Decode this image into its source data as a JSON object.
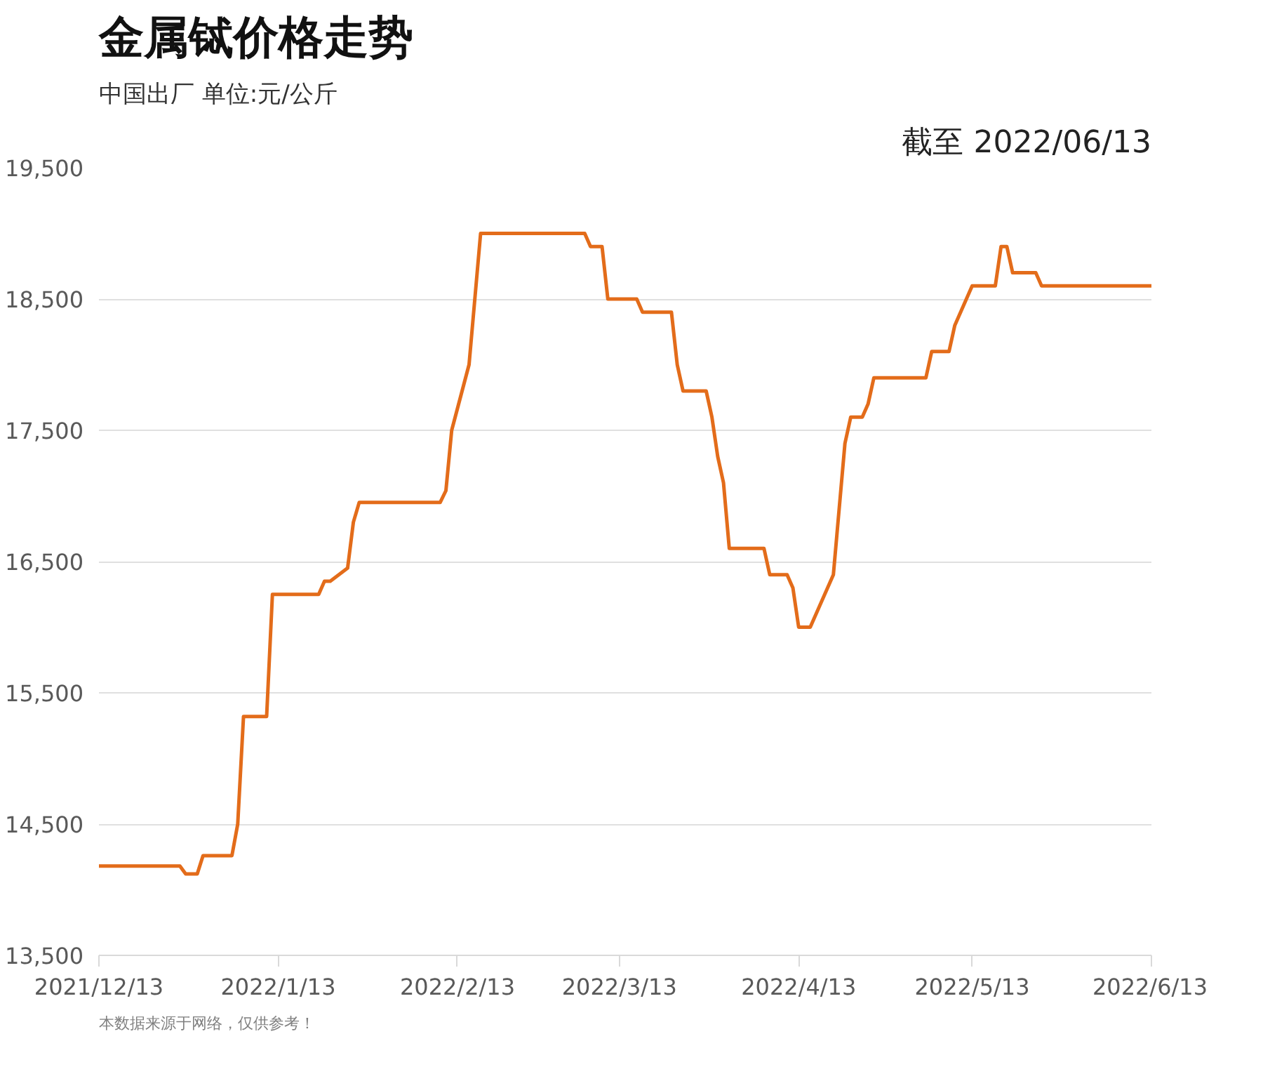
{
  "chart_data": {
    "type": "line",
    "title": "金属铽价格走势",
    "subtitle": "中国出厂  单位:元/公斤",
    "annotations": [
      "截至 2022/06/13",
      "本数据来源于网络，仅供参考！"
    ],
    "x": [
      "2021-12-13",
      "2021-12-27",
      "2021-12-28",
      "2021-12-30",
      "2021-12-31",
      "2022-01-05",
      "2022-01-06",
      "2022-01-07",
      "2022-01-11",
      "2022-01-12",
      "2022-01-20",
      "2022-01-21",
      "2022-01-22",
      "2022-01-25",
      "2022-01-26",
      "2022-01-27",
      "2022-02-10",
      "2022-02-11",
      "2022-02-12",
      "2022-02-15",
      "2022-02-17",
      "2022-03-07",
      "2022-03-08",
      "2022-03-10",
      "2022-03-11",
      "2022-03-16",
      "2022-03-17",
      "2022-03-22",
      "2022-03-23",
      "2022-03-24",
      "2022-03-28",
      "2022-03-29",
      "2022-03-30",
      "2022-03-31",
      "2022-04-01",
      "2022-04-07",
      "2022-04-08",
      "2022-04-11",
      "2022-04-12",
      "2022-04-13",
      "2022-04-15",
      "2022-04-19",
      "2022-04-21",
      "2022-04-22",
      "2022-04-24",
      "2022-04-25",
      "2022-04-26",
      "2022-05-05",
      "2022-05-06",
      "2022-05-09",
      "2022-05-10",
      "2022-05-13",
      "2022-05-17",
      "2022-05-18",
      "2022-05-19",
      "2022-05-20",
      "2022-05-24",
      "2022-05-25",
      "2022-06-13"
    ],
    "series": [
      {
        "color": "#e36c1a",
        "values": [
          14180,
          14180,
          14120,
          14120,
          14260,
          14260,
          14500,
          15320,
          15320,
          16250,
          16250,
          16350,
          16350,
          16450,
          16800,
          16950,
          16950,
          17040,
          17500,
          18000,
          19000,
          19000,
          18900,
          18900,
          18500,
          18500,
          18400,
          18400,
          18000,
          17800,
          17800,
          17600,
          17300,
          17100,
          16600,
          16600,
          16400,
          16400,
          16300,
          16000,
          16000,
          16400,
          17400,
          17600,
          17600,
          17700,
          17900,
          17900,
          18100,
          18100,
          18300,
          18600,
          18600,
          18900,
          18900,
          18700,
          18700,
          18600,
          18600
        ]
      }
    ],
    "xlim": [
      "2021-12-13",
      "2022-06-13"
    ],
    "xticks": [
      {
        "value": "2021-12-13",
        "label": "2021/12/13"
      },
      {
        "value": "2022-01-13",
        "label": "2022/1/13"
      },
      {
        "value": "2022-02-13",
        "label": "2022/2/13"
      },
      {
        "value": "2022-03-13",
        "label": "2022/3/13"
      },
      {
        "value": "2022-04-13",
        "label": "2022/4/13"
      },
      {
        "value": "2022-05-13",
        "label": "2022/5/13"
      },
      {
        "value": "2022-06-13",
        "label": "2022/6/13"
      }
    ],
    "ylim": [
      13500,
      19500
    ],
    "yticks": [
      {
        "value": 13500,
        "label": "13,500"
      },
      {
        "value": 14500,
        "label": "14,500"
      },
      {
        "value": 15500,
        "label": "15,500"
      },
      {
        "value": 16500,
        "label": "16,500"
      },
      {
        "value": 17500,
        "label": "17,500"
      },
      {
        "value": 18500,
        "label": "18,500"
      },
      {
        "value": 19500,
        "label": "19,500"
      }
    ],
    "grid": "y",
    "marker": "none",
    "line_style": "solid"
  }
}
